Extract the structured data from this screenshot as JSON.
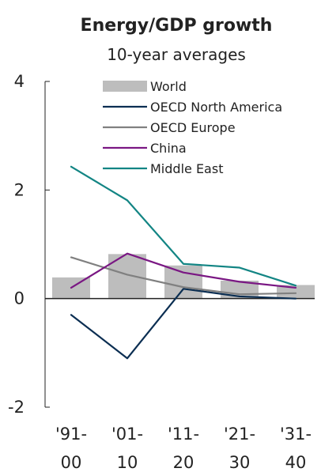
{
  "chart_data": {
    "type": "bar",
    "title": "Energy/GDP growth",
    "subtitle": "10-year averages",
    "xlabel": "",
    "ylabel": "",
    "ylim": [
      -2,
      4
    ],
    "yticks": [
      "4",
      "2",
      "0",
      "-2"
    ],
    "ytick_values": [
      4,
      2,
      0,
      -2
    ],
    "categories": [
      [
        "'91-",
        "00"
      ],
      [
        "'01-",
        "10"
      ],
      [
        "'11-",
        "20"
      ],
      [
        "'21-",
        "30"
      ],
      [
        "'31-",
        "40"
      ]
    ],
    "legend_position": "top",
    "grid": false,
    "series": [
      {
        "name": "World",
        "kind": "bar",
        "color": "#bdbdbd",
        "values": [
          0.39,
          0.82,
          0.61,
          0.33,
          0.25
        ]
      },
      {
        "name": "OECD North America",
        "kind": "line",
        "color": "#0b2e52",
        "values": [
          -0.3,
          -1.1,
          0.18,
          0.04,
          0.0
        ]
      },
      {
        "name": "OECD Europe",
        "kind": "line",
        "color": "#808080",
        "values": [
          0.76,
          0.44,
          0.21,
          0.08,
          0.1
        ]
      },
      {
        "name": "China",
        "kind": "line",
        "color": "#7a1783",
        "values": [
          0.2,
          0.83,
          0.48,
          0.31,
          0.2
        ]
      },
      {
        "name": "Middle East",
        "kind": "line",
        "color": "#138584",
        "values": [
          2.43,
          1.81,
          0.64,
          0.57,
          0.24
        ]
      }
    ]
  }
}
